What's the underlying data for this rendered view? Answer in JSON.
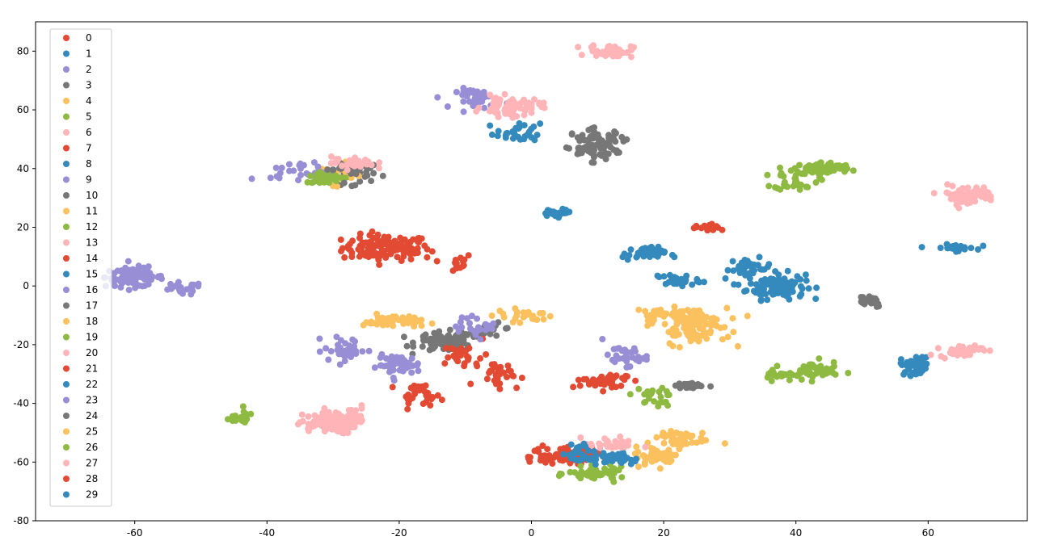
{
  "chart_data": {
    "type": "scatter",
    "title": "",
    "xlabel": "",
    "ylabel": "",
    "xlim": [
      -75,
      75
    ],
    "ylim": [
      -80,
      90
    ],
    "xticks": [
      -60,
      -40,
      -20,
      0,
      20,
      40,
      60
    ],
    "yticks": [
      -80,
      -60,
      -40,
      -20,
      0,
      20,
      40,
      60,
      80
    ],
    "grid": false,
    "legend_position": "upper-left",
    "colors": [
      "#e24a33",
      "#348abd",
      "#988ed5",
      "#777777",
      "#fbc15e",
      "#8eba42",
      "#ffb5b8"
    ],
    "series": [
      {
        "name": "0",
        "clusters": [
          [
            -22,
            13,
            6,
            4,
            120
          ],
          [
            -12,
            8,
            3,
            3,
            15
          ]
        ]
      },
      {
        "name": "1",
        "clusters": [
          [
            37,
            0,
            4,
            4,
            110
          ],
          [
            33,
            6,
            3,
            3,
            30
          ]
        ]
      },
      {
        "name": "2",
        "clusters": [
          [
            -60,
            3,
            4,
            3,
            100
          ],
          [
            -53,
            -1,
            3,
            2,
            20
          ]
        ]
      },
      {
        "name": "3",
        "clusters": [
          [
            -13,
            -19,
            4,
            3,
            90
          ],
          [
            -6,
            -15,
            3,
            2,
            25
          ]
        ]
      },
      {
        "name": "4",
        "clusters": [
          [
            24,
            -12,
            5,
            4,
            90
          ],
          [
            19,
            -10,
            3,
            3,
            20
          ]
        ]
      },
      {
        "name": "5",
        "clusters": [
          [
            44,
            40,
            4,
            2,
            80
          ],
          [
            40,
            36,
            3,
            3,
            30
          ]
        ]
      },
      {
        "name": "6",
        "clusters": [
          [
            -31,
            -47,
            4,
            3,
            90
          ],
          [
            -28,
            -44,
            3,
            3,
            30
          ]
        ]
      },
      {
        "name": "7",
        "clusters": [
          [
            7,
            -58,
            4,
            3,
            60
          ],
          [
            10,
            -33,
            3,
            2,
            20
          ]
        ]
      },
      {
        "name": "8",
        "clusters": [
          [
            58,
            -27,
            2,
            3,
            40
          ],
          [
            64,
            13,
            3,
            1,
            30
          ]
        ]
      },
      {
        "name": "9",
        "clusters": [
          [
            -20,
            -27,
            3,
            3,
            50
          ],
          [
            -8,
            64,
            3,
            3,
            40
          ]
        ]
      },
      {
        "name": "10",
        "clusters": [
          [
            10,
            50,
            4,
            3,
            50
          ],
          [
            -27,
            38,
            3,
            3,
            30
          ]
        ]
      },
      {
        "name": "11",
        "clusters": [
          [
            -21,
            -12,
            4,
            2,
            50
          ],
          [
            -30,
            38,
            3,
            3,
            30
          ]
        ]
      },
      {
        "name": "12",
        "clusters": [
          [
            10,
            -64,
            4,
            2,
            50
          ],
          [
            43,
            -29,
            3,
            3,
            40
          ]
        ]
      },
      {
        "name": "13",
        "clusters": [
          [
            -3,
            61,
            4,
            3,
            70
          ],
          [
            12,
            80,
            3,
            2,
            50
          ]
        ]
      },
      {
        "name": "14",
        "clusters": [
          [
            -5,
            -30,
            3,
            4,
            30
          ],
          [
            11,
            -32,
            3,
            2,
            25
          ]
        ]
      },
      {
        "name": "15",
        "clusters": [
          [
            17,
            11,
            3,
            2,
            40
          ],
          [
            -2,
            52,
            3,
            3,
            30
          ]
        ]
      },
      {
        "name": "16",
        "clusters": [
          [
            -28,
            -22,
            3,
            4,
            40
          ],
          [
            -35,
            39,
            4,
            3,
            30
          ]
        ]
      },
      {
        "name": "17",
        "clusters": [
          [
            10,
            46,
            3,
            3,
            40
          ],
          [
            51,
            -5,
            2,
            2,
            30
          ]
        ]
      },
      {
        "name": "18",
        "clusters": [
          [
            19,
            -58,
            3,
            3,
            50
          ],
          [
            25,
            -17,
            4,
            3,
            30
          ]
        ]
      },
      {
        "name": "19",
        "clusters": [
          [
            -31,
            37,
            3,
            2,
            40
          ],
          [
            38,
            -30,
            3,
            2,
            30
          ]
        ]
      },
      {
        "name": "20",
        "clusters": [
          [
            66,
            31,
            4,
            3,
            60
          ],
          [
            65,
            -22,
            3,
            2,
            40
          ]
        ]
      },
      {
        "name": "21",
        "clusters": [
          [
            -17,
            -37,
            3,
            3,
            30
          ],
          [
            -10,
            -24,
            3,
            4,
            25
          ]
        ]
      },
      {
        "name": "22",
        "clusters": [
          [
            13,
            -59,
            3,
            2,
            30
          ],
          [
            22,
            2,
            3,
            2,
            25
          ]
        ]
      },
      {
        "name": "23",
        "clusters": [
          [
            14,
            -24,
            3,
            3,
            30
          ],
          [
            -8,
            -14,
            3,
            3,
            25
          ]
        ]
      },
      {
        "name": "24",
        "clusters": [
          [
            24,
            -34,
            2,
            1,
            30
          ],
          [
            -28,
            40,
            3,
            3,
            25
          ]
        ]
      },
      {
        "name": "25",
        "clusters": [
          [
            22,
            -52,
            4,
            3,
            40
          ],
          [
            -1,
            -10,
            4,
            2,
            25
          ]
        ]
      },
      {
        "name": "26",
        "clusters": [
          [
            -44,
            -45,
            2,
            2,
            25
          ],
          [
            18,
            -38,
            3,
            3,
            25
          ]
        ]
      },
      {
        "name": "27",
        "clusters": [
          [
            12,
            -54,
            4,
            2,
            30
          ],
          [
            -27,
            42,
            3,
            2,
            30
          ]
        ]
      },
      {
        "name": "28",
        "clusters": [
          [
            2,
            -58,
            3,
            3,
            30
          ],
          [
            27,
            20,
            2,
            1,
            20
          ]
        ]
      },
      {
        "name": "29",
        "clusters": [
          [
            4,
            25,
            2,
            1,
            30
          ],
          [
            8,
            -57,
            3,
            3,
            30
          ]
        ]
      }
    ]
  }
}
